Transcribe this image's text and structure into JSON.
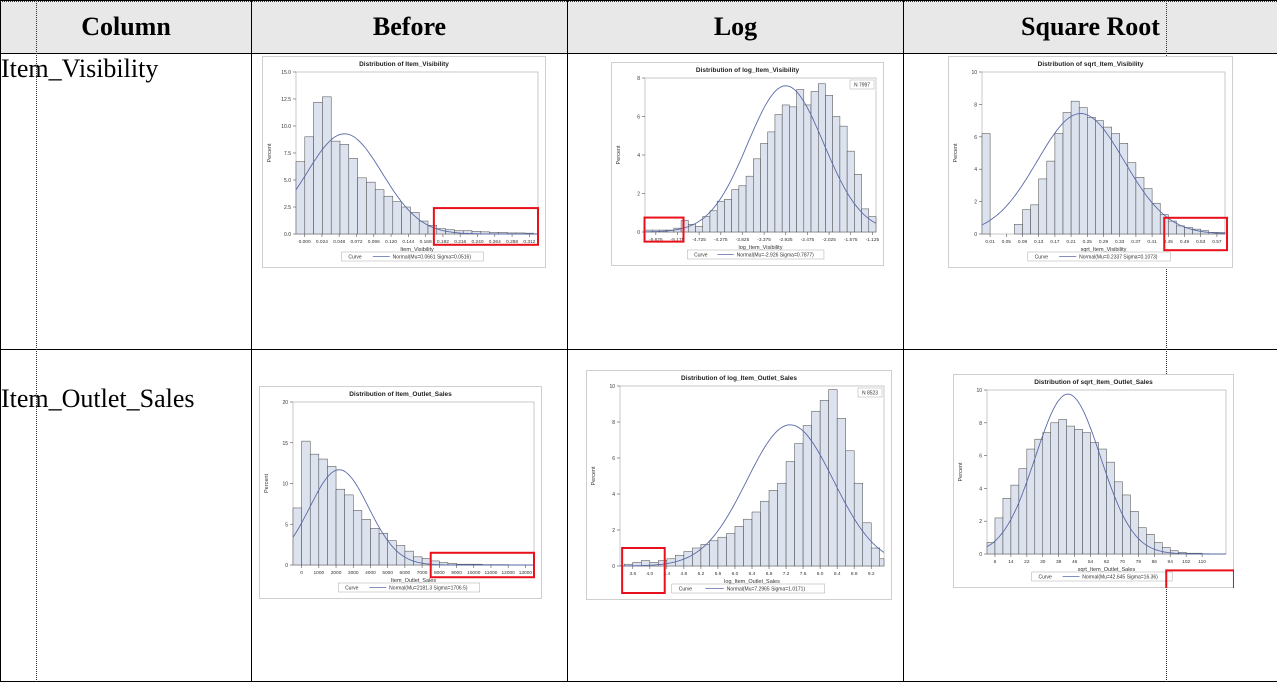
{
  "table": {
    "headers": [
      "Column",
      "Before",
      "Log",
      "Square Root"
    ],
    "rows": [
      "Item_Visibility",
      "Item_Outlet_Sales"
    ]
  },
  "accent_color": "#e8101a",
  "chart_data": [
    {
      "type": "bar",
      "title": "Distribution of Item_Visibility",
      "xlabel": "Item_Visibility",
      "ylabel": "Percent",
      "x_ticks": [
        "0.000",
        "0.024",
        "0.048",
        "0.072",
        "0.096",
        "0.120",
        "0.144",
        "0.168",
        "0.192",
        "0.216",
        "0.240",
        "0.264",
        "0.288",
        "0.312"
      ],
      "y_ticks": [
        "0.0",
        "2.5",
        "5.0",
        "7.5",
        "10.0",
        "12.5",
        "15.0"
      ],
      "ylim": [
        0,
        15
      ],
      "xlim": [
        0,
        0.33
      ],
      "bin_width": 0.012,
      "values": [
        6.7,
        9.0,
        12.2,
        12.7,
        8.6,
        8.3,
        7.0,
        5.2,
        4.8,
        4.1,
        3.5,
        3.0,
        2.5,
        2.0,
        1.2,
        0.8,
        0.5,
        0.4,
        0.3,
        0.3,
        0.25,
        0.2,
        0.15,
        0.15,
        0.1,
        0.1,
        0.08
      ],
      "curve": {
        "mu": 0.0661,
        "sigma": 0.0516
      },
      "legend_label": "Curve",
      "legend_entry": "Normal(Mu=0.0661 Sigma=0.0516)",
      "highlight": {
        "x0": 0.188,
        "x1": 0.33,
        "y0": -1.0,
        "y1": 2.4
      }
    },
    {
      "type": "bar",
      "title": "Distribution of log_Item_Visibility",
      "xlabel": "log_Item_Visibility",
      "ylabel": "Percent",
      "n_label": "N 7997",
      "x_ticks": [
        "-5.625",
        "-5.175",
        "-4.725",
        "-4.275",
        "-3.825",
        "-3.375",
        "-2.925",
        "-2.475",
        "-2.025",
        "-1.575",
        "-1.125"
      ],
      "x_tick_values": [
        -5.625,
        -5.175,
        -4.725,
        -4.275,
        -3.825,
        -3.375,
        -2.925,
        -2.475,
        -2.025,
        -1.575,
        -1.125
      ],
      "y_ticks": [
        "0",
        "2",
        "4",
        "6",
        "8"
      ],
      "ylim": [
        0,
        8
      ],
      "xlim": [
        -5.85,
        -1.05
      ],
      "bin_start": -5.85,
      "bin_width": 0.15,
      "values": [
        0.1,
        0.1,
        0.1,
        0.1,
        0.2,
        0.6,
        0.4,
        0.3,
        0.8,
        1.1,
        1.6,
        1.7,
        2.2,
        2.4,
        2.9,
        3.8,
        4.6,
        5.2,
        6.1,
        6.6,
        6.5,
        7.4,
        6.6,
        7.3,
        7.7,
        7.1,
        6.0,
        5.5,
        4.2,
        3.0,
        1.2,
        0.8
      ],
      "curve": {
        "mu": -2.926,
        "sigma": 0.7877
      },
      "legend_label": "Curve",
      "legend_entry": "Normal(Mu=-2.926 Sigma=0.7877)",
      "highlight": {
        "x0": -5.86,
        "x1": -5.05,
        "y0": -0.5,
        "y1": 0.75
      }
    },
    {
      "type": "bar",
      "title": "Distribution of sqrt_Item_Visibility",
      "xlabel": "sqrt_Item_Visibility",
      "ylabel": "Percent",
      "x_ticks": [
        "0.01",
        "0.05",
        "0.09",
        "0.13",
        "0.17",
        "0.21",
        "0.25",
        "0.29",
        "0.33",
        "0.37",
        "0.41",
        "0.45",
        "0.49",
        "0.53",
        "0.57"
      ],
      "x_tick_values": [
        0.01,
        0.05,
        0.09,
        0.13,
        0.17,
        0.21,
        0.25,
        0.29,
        0.33,
        0.37,
        0.41,
        0.45,
        0.49,
        0.53,
        0.57
      ],
      "y_ticks": [
        "0",
        "2",
        "4",
        "6",
        "8",
        "10"
      ],
      "ylim": [
        0,
        10
      ],
      "xlim": [
        -0.01,
        0.59
      ],
      "bin_start": -0.01,
      "bin_width": 0.02,
      "values": [
        6.2,
        0.0,
        0.0,
        0.0,
        0.6,
        1.5,
        1.8,
        3.4,
        4.5,
        6.2,
        7.5,
        8.2,
        7.8,
        7.2,
        7.0,
        6.6,
        6.2,
        5.6,
        4.4,
        3.5,
        2.8,
        1.9,
        1.2,
        0.8,
        0.5,
        0.4,
        0.3,
        0.2,
        0.1,
        0.1
      ],
      "curve": {
        "mu": 0.2337,
        "sigma": 0.1073
      },
      "legend_label": "Curve",
      "legend_entry": "Normal(Mu=0.2337 Sigma=0.1073)",
      "highlight": {
        "x0": 0.44,
        "x1": 0.595,
        "y0": -1.0,
        "y1": 1.0
      }
    },
    {
      "type": "bar",
      "title": "Distribution of Item_Outlet_Sales",
      "xlabel": "Item_Outlet_Sales",
      "ylabel": "Percent",
      "x_ticks": [
        "0",
        "1000",
        "2000",
        "3000",
        "4000",
        "5000",
        "6000",
        "7000",
        "8000",
        "9000",
        "10000",
        "11000",
        "12000",
        "13000"
      ],
      "y_ticks": [
        "0",
        "5",
        "10",
        "15",
        "20"
      ],
      "ylim": [
        0,
        20
      ],
      "xlim": [
        -500,
        13500
      ],
      "bin_start": -500,
      "bin_width": 500,
      "values": [
        7.0,
        15.2,
        13.6,
        13.0,
        12.1,
        9.3,
        8.6,
        6.7,
        5.6,
        4.5,
        3.9,
        3.0,
        2.4,
        1.7,
        1.0,
        0.8,
        0.5,
        0.3,
        0.2,
        0.1,
        0.1,
        0.1,
        0.05,
        0.05,
        0.05,
        0.02,
        0.02,
        0.02
      ],
      "curve": {
        "mu": 2181.3,
        "sigma": 1706.5
      },
      "legend_label": "Curve",
      "legend_entry": "Normal(Mu=2181.3 Sigma=1706.5)",
      "highlight": {
        "x0": 7500,
        "x1": 13500,
        "y0": -1.5,
        "y1": 1.5
      }
    },
    {
      "type": "bar",
      "title": "Distribution of log_Item_Outlet_Sales",
      "xlabel": "log_Item_Outlet_Sales",
      "ylabel": "Percent",
      "n_label": "N 8523",
      "x_ticks": [
        "3.6",
        "4.0",
        "4.4",
        "4.8",
        "5.2",
        "5.6",
        "6.0",
        "6.4",
        "6.8",
        "7.2",
        "7.6",
        "8.0",
        "8.4",
        "8.8",
        "9.2"
      ],
      "x_tick_values": [
        3.6,
        4.0,
        4.4,
        4.8,
        5.2,
        5.6,
        6.0,
        6.4,
        6.8,
        7.2,
        7.6,
        8.0,
        8.4,
        8.8,
        9.2
      ],
      "y_ticks": [
        "0",
        "2",
        "4",
        "6",
        "8",
        "10"
      ],
      "ylim": [
        0,
        10
      ],
      "xlim": [
        3.3,
        9.5
      ],
      "bin_start": 3.4,
      "bin_width": 0.2,
      "values": [
        0.1,
        0.2,
        0.3,
        0.2,
        0.3,
        0.4,
        0.6,
        0.8,
        1.0,
        1.2,
        1.4,
        1.6,
        1.8,
        2.2,
        2.6,
        3.0,
        3.6,
        4.2,
        4.6,
        5.8,
        6.8,
        7.8,
        8.6,
        9.2,
        9.8,
        8.2,
        6.4,
        4.6,
        2.4,
        1.0,
        0.4
      ],
      "curve": {
        "mu": 7.2965,
        "sigma": 1.0171
      },
      "legend_label": "Curve",
      "legend_entry": "Normal(Mu=7.2965 Sigma=1.0171)",
      "highlight": {
        "x0": 3.35,
        "x1": 4.35,
        "y0": -1.5,
        "y1": 1.0
      }
    },
    {
      "type": "bar",
      "title": "Distribution of sqrt_Item_Outlet_Sales",
      "xlabel": "sqrt_Item_Outlet_Sales",
      "ylabel": "Percent",
      "x_ticks": [
        "6",
        "14",
        "22",
        "30",
        "38",
        "46",
        "54",
        "62",
        "70",
        "78",
        "86",
        "94",
        "102",
        "110"
      ],
      "x_tick_values": [
        6,
        14,
        22,
        30,
        38,
        46,
        54,
        62,
        70,
        78,
        86,
        94,
        102,
        110
      ],
      "y_ticks": [
        "0",
        "2",
        "4",
        "6",
        "8",
        "10"
      ],
      "ylim": [
        0,
        10
      ],
      "xlim": [
        2,
        122
      ],
      "bin_start": 2,
      "bin_width": 4,
      "values": [
        0.7,
        2.2,
        3.4,
        4.2,
        5.2,
        6.4,
        7.0,
        7.4,
        8.0,
        8.2,
        7.8,
        7.6,
        7.4,
        6.8,
        6.4,
        5.6,
        4.4,
        3.6,
        2.6,
        1.6,
        1.2,
        0.7,
        0.4,
        0.2,
        0.1,
        0.05,
        0.05,
        0.02
      ],
      "curve": {
        "mu": 42.645,
        "sigma": 16.36
      },
      "legend_label": "Curve",
      "legend_entry": "Normal(Mu=42.645 Sigma=16.36)",
      "highlight": {
        "x0": 92,
        "x1": 126,
        "y0": -3.0,
        "y1": -1.0
      }
    }
  ]
}
